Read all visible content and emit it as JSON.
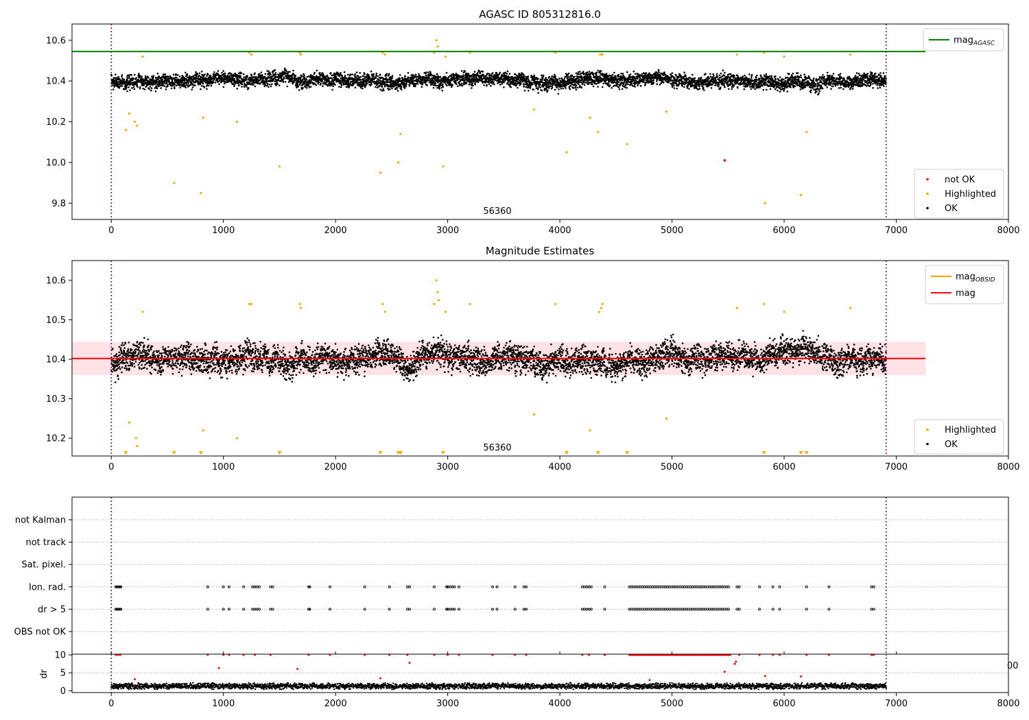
{
  "colors": {
    "ok": "#000000",
    "highlighted": "#ffa500",
    "not_ok": "#ff0000",
    "agasc_line": "#008000",
    "mag_line": "#ff0000",
    "mag_band": "#ffb6c1",
    "obsid_line": "#ffa500",
    "vline": "#800080"
  },
  "chart_data": [
    {
      "type": "scatter",
      "title": "AGASC ID 805312816.0",
      "xlim": [
        -350,
        8000
      ],
      "ylim": [
        9.72,
        10.68
      ],
      "xticks": [
        0,
        1000,
        2000,
        3000,
        4000,
        5000,
        6000,
        7000,
        8000
      ],
      "yticks": [
        9.8,
        10.0,
        10.2,
        10.4,
        10.6
      ],
      "ytick_labels": [
        "9.8",
        "10.0",
        "10.2",
        "10.4",
        "10.6"
      ],
      "annotation": "56360",
      "annotation_x": 3450,
      "vlines": [
        0,
        6910
      ],
      "hline": {
        "name": "mag_AGASC",
        "y": 10.545,
        "x": [
          -350,
          7260
        ]
      },
      "legend_top": [
        {
          "label": "mag",
          "sub": "AGASC",
          "kind": "line",
          "color": "#008000"
        }
      ],
      "legend_bottom": [
        {
          "label": "not OK",
          "kind": "dot",
          "color": "#ff0000"
        },
        {
          "label": "Highlighted",
          "kind": "dot",
          "color": "#ffa500"
        },
        {
          "label": "OK",
          "kind": "dot",
          "color": "#000000"
        }
      ],
      "series": [
        {
          "name": "OK",
          "x_range": [
            0,
            6910
          ],
          "y_base": 10.4,
          "y_spread": 0.05
        },
        {
          "name": "Highlighted",
          "points": [
            [
              130,
              10.16
            ],
            [
              160,
              10.24
            ],
            [
              210,
              10.2
            ],
            [
              230,
              10.18
            ],
            [
              280,
              10.52
            ],
            [
              560,
              9.9
            ],
            [
              800,
              9.85
            ],
            [
              820,
              10.22
            ],
            [
              1120,
              10.2
            ],
            [
              1230,
              10.54
            ],
            [
              1250,
              10.53
            ],
            [
              1500,
              9.98
            ],
            [
              1680,
              10.54
            ],
            [
              1690,
              10.53
            ],
            [
              2400,
              9.95
            ],
            [
              2420,
              10.54
            ],
            [
              2440,
              10.53
            ],
            [
              2560,
              10.0
            ],
            [
              2580,
              10.14
            ],
            [
              2880,
              10.54
            ],
            [
              2900,
              10.6
            ],
            [
              2910,
              10.57
            ],
            [
              2960,
              9.98
            ],
            [
              2980,
              10.52
            ],
            [
              3200,
              10.54
            ],
            [
              3770,
              10.26
            ],
            [
              3960,
              10.54
            ],
            [
              4060,
              10.05
            ],
            [
              4270,
              10.22
            ],
            [
              4340,
              10.15
            ],
            [
              4360,
              10.53
            ],
            [
              4380,
              10.53
            ],
            [
              4600,
              10.09
            ],
            [
              4950,
              10.25
            ],
            [
              5580,
              10.53
            ],
            [
              5820,
              10.54
            ],
            [
              5830,
              9.8
            ],
            [
              6000,
              10.52
            ],
            [
              6150,
              9.84
            ],
            [
              6200,
              10.15
            ],
            [
              6590,
              10.53
            ]
          ]
        },
        {
          "name": "not OK",
          "points": [
            [
              5470,
              10.01
            ]
          ]
        }
      ]
    },
    {
      "type": "scatter",
      "title": "Magnitude Estimates",
      "xlim": [
        -350,
        8000
      ],
      "ylim": [
        10.155,
        10.65
      ],
      "xticks": [
        0,
        1000,
        2000,
        3000,
        4000,
        5000,
        6000,
        7000,
        8000
      ],
      "yticks": [
        10.2,
        10.3,
        10.4,
        10.5,
        10.6
      ],
      "ytick_labels": [
        "10.2",
        "10.3",
        "10.4",
        "10.5",
        "10.6"
      ],
      "annotation": "56360",
      "annotation_x": 3450,
      "vlines": [
        0,
        6910
      ],
      "mag": {
        "y": 10.402,
        "band": [
          10.36,
          10.444
        ],
        "x": [
          -350,
          7260
        ]
      },
      "legend_top": [
        {
          "label": "mag",
          "sub": "OBSID",
          "kind": "line",
          "color": "#ffa500"
        },
        {
          "label": "mag",
          "sub": "",
          "kind": "line",
          "color": "#ff0000"
        }
      ],
      "legend_bottom": [
        {
          "label": "Highlighted",
          "kind": "dot",
          "color": "#ffa500"
        },
        {
          "label": "OK",
          "kind": "dot",
          "color": "#000000"
        }
      ],
      "series": [
        {
          "name": "OK",
          "x_range": [
            0,
            6910
          ],
          "y_base": 10.4,
          "y_spread": 0.05
        },
        {
          "name": "Highlighted",
          "points": [
            [
              160,
              10.24
            ],
            [
              220,
              10.2
            ],
            [
              230,
              10.18
            ],
            [
              280,
              10.52
            ],
            [
              820,
              10.22
            ],
            [
              1120,
              10.2
            ],
            [
              1230,
              10.54
            ],
            [
              1250,
              10.54
            ],
            [
              1680,
              10.54
            ],
            [
              1690,
              10.53
            ],
            [
              2420,
              10.54
            ],
            [
              2440,
              10.52
            ],
            [
              2880,
              10.54
            ],
            [
              2900,
              10.6
            ],
            [
              2910,
              10.57
            ],
            [
              2920,
              10.55
            ],
            [
              2980,
              10.52
            ],
            [
              3200,
              10.54
            ],
            [
              3770,
              10.26
            ],
            [
              3960,
              10.54
            ],
            [
              4270,
              10.22
            ],
            [
              4350,
              10.52
            ],
            [
              4370,
              10.53
            ],
            [
              4380,
              10.54
            ],
            [
              4950,
              10.25
            ],
            [
              5580,
              10.53
            ],
            [
              5820,
              10.54
            ],
            [
              6000,
              10.52
            ],
            [
              6590,
              10.53
            ]
          ]
        },
        {
          "name": "Highlighted (below range)",
          "x": [
            130,
            560,
            800,
            1500,
            2400,
            2560,
            2580,
            2960,
            4060,
            4340,
            4600,
            5820,
            6150,
            6200
          ]
        }
      ]
    },
    {
      "type": "scatter",
      "title": "",
      "xlim": [
        -350,
        8000
      ],
      "categories": [
        "not Kalman",
        "not track",
        "Sat. pixel.",
        "Ion. rad.",
        "dr > 5",
        "OBS not OK"
      ],
      "vlines": [
        0,
        6910
      ],
      "flags": {
        "Ion. rad.": [
          40,
          50,
          60,
          70,
          80,
          85,
          860,
          1000,
          1050,
          1180,
          1260,
          1280,
          1300,
          1320,
          1420,
          1440,
          1760,
          1770,
          1950,
          2260,
          2480,
          2640,
          2660,
          2880,
          2990,
          3000,
          3020,
          3040,
          3060,
          3100,
          3400,
          3440,
          3600,
          3680,
          3700,
          4200,
          4220,
          4240,
          4260,
          4280,
          4400
        ],
        "Ion. rad. dense": [
          4620,
          5520
        ],
        "Ion. rad. tail": [
          5580,
          5600,
          5780,
          5900,
          5960,
          6200,
          6400,
          6780,
          6800
        ],
        "dr > 5": [
          40,
          50,
          60,
          70,
          80,
          85,
          860,
          1000,
          1050,
          1180,
          1260,
          1280,
          1300,
          1320,
          1420,
          1440,
          1760,
          1770,
          1950,
          2260,
          2480,
          2640,
          2660,
          2880,
          2990,
          3000,
          3020,
          3040,
          3060,
          3100,
          3400,
          3440,
          3600,
          3680,
          3700,
          4200,
          4220,
          4240,
          4260,
          4280,
          4400
        ],
        "dr > 5 dense": [
          4620,
          5520
        ],
        "dr > 5 tail": [
          5580,
          5600,
          5780,
          5900,
          5960,
          6200,
          6400,
          6780,
          6800
        ]
      }
    },
    {
      "type": "scatter",
      "title": "",
      "ylabel": "dr",
      "xlim": [
        -350,
        8000
      ],
      "ylim": [
        -0.5,
        10.2
      ],
      "xticks": [
        0,
        1000,
        2000,
        3000,
        4000,
        5000,
        6000,
        7000,
        8000
      ],
      "yticks": [
        0,
        5,
        10
      ],
      "ytick_labels": [
        "0",
        "5",
        "10"
      ],
      "stray_label": "00",
      "vlines": [
        0,
        6910
      ],
      "series": [
        {
          "name": "dr",
          "x_range": [
            0,
            6910
          ],
          "y_base": 1.3,
          "y_spread": 0.6
        },
        {
          "name": "dr > 5",
          "points": [
            [
              40,
              10
            ],
            [
              60,
              10
            ],
            [
              80,
              10
            ],
            [
              210,
              3.2
            ],
            [
              860,
              10
            ],
            [
              960,
              6.3
            ],
            [
              1000,
              10
            ],
            [
              1050,
              10
            ],
            [
              1180,
              10
            ],
            [
              1280,
              10
            ],
            [
              1420,
              10
            ],
            [
              1660,
              6.1
            ],
            [
              1760,
              10
            ],
            [
              1950,
              10
            ],
            [
              2260,
              10
            ],
            [
              2400,
              3.5
            ],
            [
              2480,
              10
            ],
            [
              2640,
              10
            ],
            [
              2660,
              7.8
            ],
            [
              2880,
              10
            ],
            [
              3000,
              10
            ],
            [
              3100,
              10
            ],
            [
              3400,
              10
            ],
            [
              3600,
              10
            ],
            [
              3700,
              10
            ],
            [
              4200,
              10
            ],
            [
              4260,
              10
            ],
            [
              4400,
              10
            ],
            [
              4800,
              3.0
            ],
            [
              5470,
              5.3
            ],
            [
              5560,
              7.5
            ],
            [
              5570,
              8.1
            ],
            [
              5600,
              10
            ],
            [
              5780,
              10
            ],
            [
              5830,
              4.1
            ],
            [
              5900,
              10
            ],
            [
              5960,
              10
            ],
            [
              6150,
              4.0
            ],
            [
              6200,
              10
            ],
            [
              6400,
              10
            ],
            [
              6780,
              10
            ],
            [
              6800,
              10
            ]
          ]
        },
        {
          "name": "dr > 5 dense",
          "x_range": [
            4620,
            5520
          ],
          "y": 10
        }
      ]
    }
  ]
}
